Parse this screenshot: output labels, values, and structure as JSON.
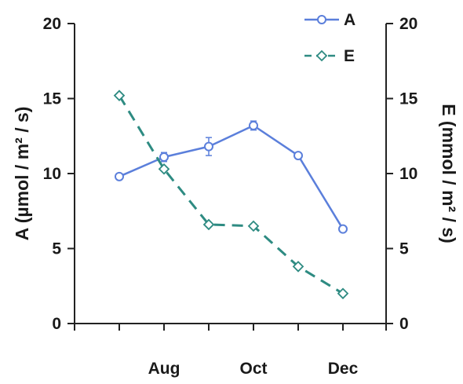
{
  "chart_data": {
    "type": "line",
    "x_tick_labels": [
      "",
      "Aug",
      "",
      "Oct",
      "",
      "Dec"
    ],
    "series": [
      {
        "name": "A",
        "axis": "left",
        "values": [
          9.8,
          11.1,
          11.8,
          13.2,
          11.2,
          6.3
        ],
        "error": [
          0,
          0.3,
          0.6,
          0.3,
          0,
          0
        ],
        "color": "#5b7fdb",
        "style": "solid",
        "marker": "circle"
      },
      {
        "name": "E",
        "axis": "right",
        "values": [
          15.2,
          10.3,
          6.6,
          6.5,
          3.8,
          2.0
        ],
        "color": "#2e8b82",
        "style": "dashed",
        "marker": "diamond"
      }
    ],
    "y_left": {
      "label": "A (µmol / m² / s)",
      "range": [
        0,
        20
      ],
      "ticks": [
        "0",
        "5",
        "10",
        "15",
        "20"
      ]
    },
    "y_right": {
      "label": "E (mmol / m² / s)",
      "range": [
        0,
        20
      ],
      "ticks": [
        "0",
        "5",
        "10",
        "15",
        "20"
      ]
    },
    "grid": false,
    "legend_position": "top-right"
  }
}
